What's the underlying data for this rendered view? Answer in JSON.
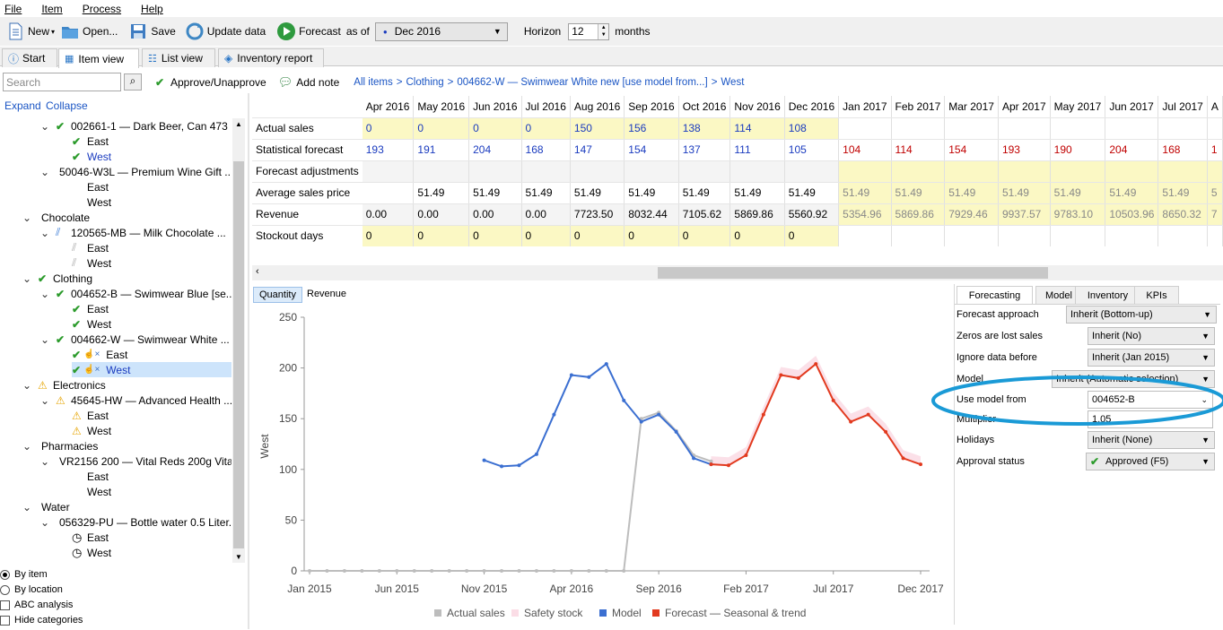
{
  "menu": [
    "File",
    "Item",
    "Process",
    "Help"
  ],
  "toolbar": {
    "new": "New",
    "open": "Open...",
    "save": "Save",
    "update": "Update data",
    "forecast": "Forecast",
    "as_of": "as of",
    "period": "Dec 2016",
    "horizon_label": "Horizon",
    "horizon_value": "12",
    "months": "months"
  },
  "tabs": [
    "Start",
    "Item view",
    "List view",
    "Inventory report"
  ],
  "subbar": {
    "search_placeholder": "Search",
    "approve": "Approve/Unapprove",
    "add_note": "Add note",
    "expand": "Expand",
    "collapse": "Collapse"
  },
  "breadcrumb": [
    "All items",
    ">",
    "Clothing",
    ">",
    "004662-W — Swimwear White new [use model from...]",
    ">",
    "West"
  ],
  "tree": [
    {
      "indent": 1,
      "chev": "v",
      "icon": "check",
      "label": "002661-1 — Dark Beer, Can 473 ..."
    },
    {
      "indent": 2,
      "icon": "check",
      "label": "East"
    },
    {
      "indent": 2,
      "icon": "check",
      "label": "West",
      "blue": true
    },
    {
      "indent": 1,
      "chev": "v",
      "icon": "",
      "label": "50046-W3L — Premium Wine Gift ..."
    },
    {
      "indent": 2,
      "icon": "",
      "label": "East"
    },
    {
      "indent": 2,
      "icon": "",
      "label": "West"
    },
    {
      "indent": 0,
      "chev": "v",
      "icon": "",
      "label": "Chocolate"
    },
    {
      "indent": 1,
      "chev": "v",
      "icon": "clip",
      "label": "120565-MB — Milk Chocolate ..."
    },
    {
      "indent": 2,
      "icon": "clipgray",
      "label": "East"
    },
    {
      "indent": 2,
      "icon": "clipgray",
      "label": "West"
    },
    {
      "indent": 0,
      "chev": "v",
      "icon": "check",
      "label": "Clothing"
    },
    {
      "indent": 1,
      "chev": "v",
      "icon": "check",
      "label": "004652-B — Swimwear Blue [se..."
    },
    {
      "indent": 2,
      "icon": "check",
      "label": "East"
    },
    {
      "indent": 2,
      "icon": "check",
      "label": "West"
    },
    {
      "indent": 1,
      "chev": "v",
      "icon": "check",
      "label": "004662-W — Swimwear White ..."
    },
    {
      "indent": 2,
      "icon": "checkhand",
      "label": "East"
    },
    {
      "indent": 2,
      "icon": "checkhand",
      "label": "West",
      "selected": true
    },
    {
      "indent": 0,
      "chev": "v",
      "icon": "warn",
      "label": "Electronics"
    },
    {
      "indent": 1,
      "chev": "v",
      "icon": "warn",
      "label": "45645-HW — Advanced Health ..."
    },
    {
      "indent": 2,
      "icon": "warn",
      "label": "East"
    },
    {
      "indent": 2,
      "icon": "warn",
      "label": "West"
    },
    {
      "indent": 0,
      "chev": "v",
      "icon": "",
      "label": "Pharmacies"
    },
    {
      "indent": 1,
      "chev": "v",
      "icon": "",
      "label": "VR2156 200 — Vital Reds 200g Vita..."
    },
    {
      "indent": 2,
      "icon": "",
      "label": "East"
    },
    {
      "indent": 2,
      "icon": "",
      "label": "West"
    },
    {
      "indent": 0,
      "chev": "v",
      "icon": "",
      "label": "Water"
    },
    {
      "indent": 1,
      "chev": "v",
      "icon": "",
      "label": "056329-PU — Bottle water 0.5 Liter..."
    },
    {
      "indent": 2,
      "icon": "clock",
      "label": "East"
    },
    {
      "indent": 2,
      "icon": "clock",
      "label": "West"
    }
  ],
  "bottom_options": {
    "by_item": "By item",
    "by_location": "By location",
    "abc": "ABC analysis",
    "hide": "Hide categories"
  },
  "grid": {
    "months": [
      "Apr 2016",
      "May 2016",
      "Jun 2016",
      "Jul 2016",
      "Aug 2016",
      "Sep 2016",
      "Oct 2016",
      "Nov 2016",
      "Dec 2016",
      "Jan 2017",
      "Feb 2017",
      "Mar 2017",
      "Apr 2017",
      "May 2017",
      "Jun 2017",
      "Jul 2017",
      "A"
    ],
    "rows": [
      {
        "label": "Actual sales",
        "values": [
          "0",
          "0",
          "0",
          "0",
          "150",
          "156",
          "138",
          "114",
          "108",
          "",
          "",
          "",
          "",
          "",
          "",
          "",
          ""
        ]
      },
      {
        "label": "Statistical forecast",
        "values": [
          "193",
          "191",
          "204",
          "168",
          "147",
          "154",
          "137",
          "111",
          "105",
          "104",
          "114",
          "154",
          "193",
          "190",
          "204",
          "168",
          "1"
        ]
      },
      {
        "label": "Forecast adjustments",
        "values": [
          "",
          "",
          "",
          "",
          "",
          "",
          "",
          "",
          "",
          "",
          "",
          "",
          "",
          "",
          "",
          "",
          ""
        ]
      },
      {
        "label": "Average sales price",
        "values": [
          "",
          "51.49",
          "51.49",
          "51.49",
          "51.49",
          "51.49",
          "51.49",
          "51.49",
          "51.49",
          "51.49",
          "51.49",
          "51.49",
          "51.49",
          "51.49",
          "51.49",
          "51.49",
          "5"
        ]
      },
      {
        "label": "Revenue",
        "values": [
          "0.00",
          "0.00",
          "0.00",
          "0.00",
          "7723.50",
          "8032.44",
          "7105.62",
          "5869.86",
          "5560.92",
          "5354.96",
          "5869.86",
          "7929.46",
          "9937.57",
          "9783.10",
          "10503.96",
          "8650.32",
          "7"
        ]
      },
      {
        "label": "Stockout days",
        "values": [
          "0",
          "0",
          "0",
          "0",
          "0",
          "0",
          "0",
          "0",
          "0",
          "",
          "",
          "",
          "",
          "",
          "",
          "",
          ""
        ]
      }
    ]
  },
  "chart_tabs": [
    "Quantity",
    "Revenue"
  ],
  "chart_data": {
    "type": "line",
    "ylabel": "West",
    "ylim": [
      0,
      250
    ],
    "yticks": [
      "250",
      "200",
      "150",
      "100",
      "50",
      "0"
    ],
    "xticks": [
      "Jan 2015",
      "Jun 2015",
      "Nov 2015",
      "Apr 2016",
      "Sep 2016",
      "Feb 2017",
      "Jul 2017",
      "Dec 2017"
    ],
    "series": [
      {
        "name": "Actual sales",
        "color": "#bdbdbd",
        "start": "Jan 2015",
        "values": [
          0,
          0,
          0,
          0,
          0,
          0,
          0,
          0,
          0,
          0,
          0,
          0,
          0,
          0,
          0,
          0,
          0,
          0,
          0,
          150,
          156,
          138,
          114,
          108
        ]
      },
      {
        "name": "Safety stock",
        "color": "#fbdde6"
      },
      {
        "name": "Model",
        "color": "#3b6fd1",
        "start": "Nov 2015",
        "values": [
          109,
          103,
          104,
          115,
          154,
          193,
          191,
          204,
          168,
          147,
          154,
          137,
          111,
          105
        ]
      },
      {
        "name": "Forecast — Seasonal & trend",
        "color": "#e23a1f",
        "start": "Dec 2016",
        "values": [
          105,
          104,
          114,
          154,
          193,
          190,
          204,
          168,
          147,
          154,
          137,
          111,
          105
        ]
      }
    ]
  },
  "panel": {
    "tabs": [
      "Forecasting",
      "Model",
      "Inventory",
      "KPIs"
    ],
    "rows": [
      {
        "label": "Forecast approach",
        "value": "Inherit (Bottom-up)"
      },
      {
        "label": "Zeros are lost sales",
        "value": "Inherit (No)"
      },
      {
        "label": "Ignore data before",
        "value": "Inherit (Jan 2015)"
      },
      {
        "label": "Model",
        "value": "Inherit (Automatic selection)"
      },
      {
        "label": "Use model from",
        "value": "004652-B"
      },
      {
        "label": "Multiplier",
        "value": "1.05"
      },
      {
        "label": "Holidays",
        "value": "Inherit (None)"
      },
      {
        "label": "Approval status",
        "value": "Approved (F5)"
      }
    ]
  }
}
